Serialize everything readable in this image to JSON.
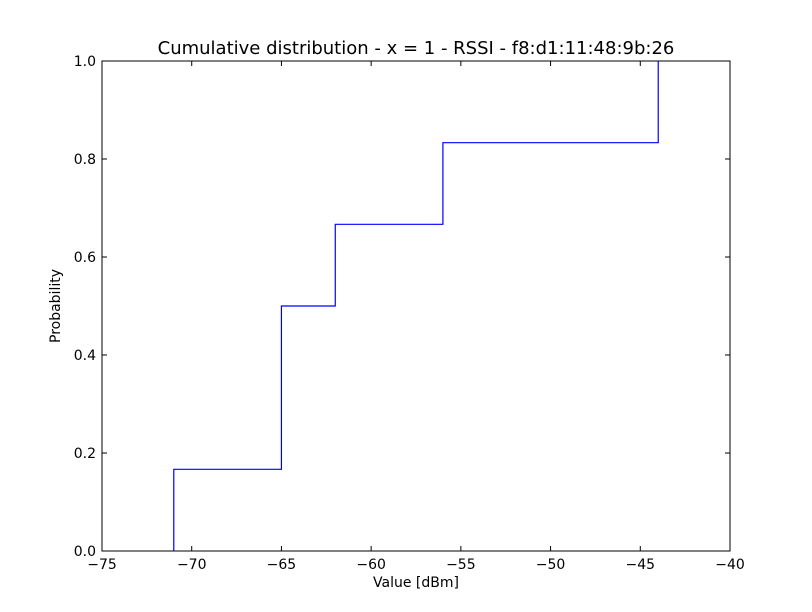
{
  "chart_data": {
    "type": "line",
    "step": true,
    "title": "Cumulative distribution - x = 1 - RSSI - f8:d1:11:48:9b:26",
    "xlabel": "Value [dBm]",
    "ylabel": "Probability",
    "xlim": [
      -75,
      -40
    ],
    "ylim": [
      0.0,
      1.0
    ],
    "grid": false,
    "xticks": [
      -75,
      -70,
      -65,
      -60,
      -55,
      -50,
      -45,
      -40
    ],
    "xtick_labels": [
      "−75",
      "−70",
      "−65",
      "−60",
      "−55",
      "−50",
      "−45",
      "−40"
    ],
    "yticks": [
      0.0,
      0.2,
      0.4,
      0.6,
      0.8,
      1.0
    ],
    "ytick_labels": [
      "0.0",
      "0.2",
      "0.4",
      "0.6",
      "0.8",
      "1.0"
    ],
    "series": [
      {
        "color": "#0000ff",
        "x": [
          -71,
          -71,
          -65,
          -65,
          -62,
          -62,
          -56,
          -56,
          -44,
          -44
        ],
        "y": [
          0.0,
          0.1667,
          0.1667,
          0.5,
          0.5,
          0.6667,
          0.6667,
          0.8333,
          0.8333,
          1.0
        ]
      }
    ]
  }
}
